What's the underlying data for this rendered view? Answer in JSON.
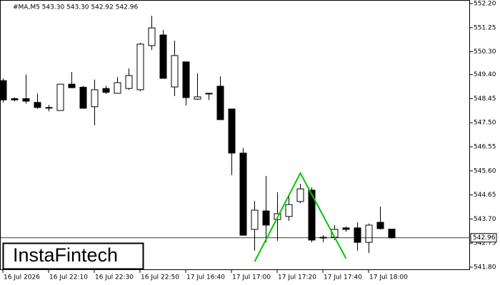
{
  "chart_data": {
    "type": "candlestick",
    "info": "#MA,M5  543.30 543.30 542.92 542.96",
    "watermark": "InstaFintech",
    "categories": [
      "16 Jul 2026",
      null,
      null,
      null,
      "16 Jul 22:10",
      null,
      null,
      null,
      "16 Jul 22:30",
      null,
      null,
      null,
      "16 Jul 22:50",
      null,
      null,
      null,
      "17 Jul 16:40",
      null,
      null,
      null,
      "17 Jul 17:00",
      null,
      null,
      null,
      "17 Jul 17:20",
      null,
      null,
      null,
      "17 Jul 17:40",
      null,
      null,
      null,
      "17 Jul 18:00",
      null,
      null
    ],
    "open": [
      549.16,
      548.45,
      548.45,
      548.3,
      548.1,
      547.98,
      549.02,
      548.9,
      548.13,
      548.85,
      548.66,
      548.85,
      548.8,
      550.54,
      550.96,
      548.91,
      549.9,
      548.43,
      548.66,
      548.94,
      548.04,
      546.3,
      543.29,
      544.02,
      543.68,
      543.8,
      544.39,
      544.84,
      542.98,
      542.98,
      543.35,
      543.35,
      542.78,
      543.57,
      543.3
    ],
    "high": [
      549.25,
      548.5,
      549.4,
      548.65,
      548.2,
      549.02,
      549.5,
      548.95,
      549.2,
      548.95,
      549.3,
      549.64,
      550.65,
      551.72,
      551.16,
      550.74,
      549.9,
      549.45,
      548.66,
      549.33,
      548.04,
      546.5,
      544.41,
      545.4,
      544.75,
      544.64,
      545.09,
      544.95,
      543.06,
      543.46,
      543.4,
      543.57,
      543.52,
      544.19,
      543.3
    ],
    "low": [
      548.3,
      548.35,
      548.25,
      548.05,
      547.95,
      547.98,
      548.88,
      548.07,
      547.4,
      548.63,
      548.66,
      548.8,
      548.74,
      550.37,
      549.25,
      548.55,
      548.18,
      548.4,
      548.4,
      547.62,
      545.43,
      543.06,
      542.45,
      542.78,
      542.84,
      543.63,
      544.33,
      542.78,
      542.78,
      542.87,
      543.2,
      542.45,
      542.36,
      543.29,
      542.92
    ],
    "close": [
      548.4,
      548.4,
      548.35,
      548.1,
      548.1,
      549.02,
      548.88,
      548.07,
      548.8,
      548.7,
      549.08,
      549.36,
      550.6,
      551.24,
      549.25,
      550.15,
      548.49,
      548.52,
      548.66,
      547.62,
      546.3,
      543.06,
      544.05,
      543.46,
      543.91,
      544.27,
      544.89,
      542.87,
      542.98,
      543.29,
      543.29,
      542.78,
      543.46,
      543.32,
      542.96
    ],
    "current_price": 542.96,
    "overlay": {
      "color": "#00c800",
      "x": [
        22,
        26,
        30
      ],
      "values": [
        542.02,
        545.51,
        542.14
      ]
    },
    "ylim": [
      541.8,
      552.2
    ],
    "yticks": [
      {
        "value": 552.2,
        "label": "552.20"
      },
      551.25,
      {
        "value": 550.3,
        "label": "550.30"
      },
      {
        "value": 549.4,
        "label": "549.40"
      },
      548.45,
      {
        "value": 547.5,
        "label": "547.50"
      },
      546.55,
      {
        "value": 545.6,
        "label": "545.60"
      },
      544.65,
      {
        "value": 543.7,
        "label": "543.70"
      },
      542.75,
      {
        "value": 541.8,
        "label": "541.80"
      }
    ]
  }
}
